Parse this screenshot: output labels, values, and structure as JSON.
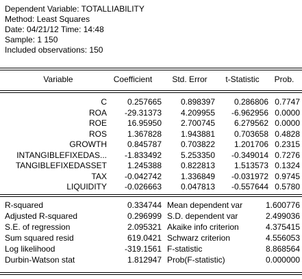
{
  "header": {
    "dependent": "Dependent Variable: TOTALLIABILITY",
    "method": "Method: Least Squares",
    "date": "Date: 04/21/12   Time: 14:48",
    "sample": "Sample: 1 150",
    "observations": "Included observations: 150"
  },
  "columns": {
    "variable": "Variable",
    "coefficient": "Coefficient",
    "stderr": "Std. Error",
    "tstat": "t-Statistic",
    "prob": "Prob."
  },
  "rows": [
    {
      "variable": "C",
      "coefficient": "0.257665",
      "stderr": "0.898397",
      "tstat": "0.286806",
      "prob": "0.7747"
    },
    {
      "variable": "ROA",
      "coefficient": "-29.31373",
      "stderr": "4.209955",
      "tstat": "-6.962956",
      "prob": "0.0000"
    },
    {
      "variable": "ROE",
      "coefficient": "16.95950",
      "stderr": "2.700745",
      "tstat": "6.279562",
      "prob": "0.0000"
    },
    {
      "variable": "ROS",
      "coefficient": "1.367828",
      "stderr": "1.943881",
      "tstat": "0.703658",
      "prob": "0.4828"
    },
    {
      "variable": "GROWTH",
      "coefficient": "0.845787",
      "stderr": "0.703822",
      "tstat": "1.201706",
      "prob": "0.2315"
    },
    {
      "variable": "INTANGIBLEFIXEDAS...",
      "coefficient": "-1.833492",
      "stderr": "5.253350",
      "tstat": "-0.349014",
      "prob": "0.7276"
    },
    {
      "variable": "TANGIBLEFIXEDASSET",
      "coefficient": "1.245388",
      "stderr": "0.822813",
      "tstat": "1.513573",
      "prob": "0.1324"
    },
    {
      "variable": "TAX",
      "coefficient": "-0.042742",
      "stderr": "1.336849",
      "tstat": "-0.031972",
      "prob": "0.9745"
    },
    {
      "variable": "LIQUIDITY",
      "coefficient": "-0.026663",
      "stderr": "0.047813",
      "tstat": "-0.557644",
      "prob": "0.5780"
    }
  ],
  "stats": [
    {
      "label": "R-squared",
      "value": "0.334744",
      "label2": "Mean dependent var",
      "value2": "1.600776"
    },
    {
      "label": "Adjusted R-squared",
      "value": "0.296999",
      "label2": "S.D. dependent var",
      "value2": "2.499036"
    },
    {
      "label": "S.E. of regression",
      "value": "2.095321",
      "label2": "Akaike info criterion",
      "value2": "4.375415"
    },
    {
      "label": "Sum squared resid",
      "value": "619.0421",
      "label2": "Schwarz criterion",
      "value2": "4.556053"
    },
    {
      "label": "Log likelihood",
      "value": "-319.1561",
      "label2": "F-statistic",
      "value2": "8.868564"
    },
    {
      "label": "Durbin-Watson stat",
      "value": "1.812947",
      "label2": "Prob(F-statistic)",
      "value2": "0.000000"
    }
  ]
}
